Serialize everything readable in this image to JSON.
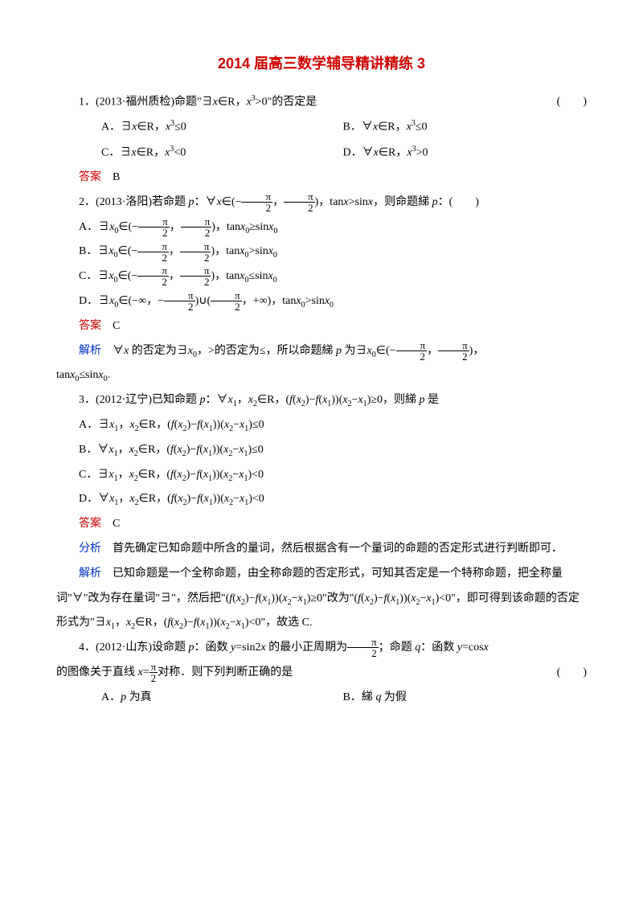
{
  "title": "2014 届高三数学辅导精讲精练 3",
  "q1": {
    "stem_a": "1．(2013·福州质检)命题\"∃",
    "stem_b": "∈R，",
    "stem_c": ">0\"的否定是",
    "paren": "(　　)",
    "A_a": "A．∃",
    "A_b": "∈R，",
    "A_c": "≤0",
    "B_a": "B．∀",
    "B_b": "∈R，",
    "B_c": "≤0",
    "C_a": "C．∃",
    "C_b": "∈R，",
    "C_c": "<0",
    "D_a": "D．∀",
    "D_b": "∈R，",
    "D_c": ">0",
    "ans_label": "答案",
    "ans": "　B"
  },
  "q2": {
    "stem_a": "2．(2013·洛阳)若命题 ",
    "stem_b": "：∀",
    "stem_c": "∈(−",
    "stem_d": "，",
    "stem_e": ")，tan",
    "stem_f": ">sin",
    "stem_g": "，则命题綈 ",
    "stem_h": "：(　　)",
    "A_a": "A．∃",
    "A_b": "∈(−",
    "A_c": "，",
    "A_d": ")，tan",
    "A_e": "≥sin",
    "B_a": "B．∃",
    "B_b": "∈(−",
    "B_c": "，",
    "B_d": ")，tan",
    "B_e": ">sin",
    "C_a": "C．∃",
    "C_b": "∈(−",
    "C_c": "，",
    "C_d": ")，tan",
    "C_e": "≤sin",
    "D_a": "D．∃",
    "D_b": "∈(−∞，−",
    "D_c": ")∪(",
    "D_d": "，+∞)，tan",
    "D_e": ">sin",
    "ans_label": "答案",
    "ans": "　C",
    "ex_label": "解析",
    "ex_a": "　∀",
    "ex_b": " 的否定为∃",
    "ex_c": "，>的否定为≤，所以命题綈 ",
    "ex_d": " 为∃",
    "ex_e": "∈(−",
    "ex_f": "，",
    "ex_g": ")，",
    "ex_h": "tan",
    "ex_i": "≤sin",
    "ex_j": "."
  },
  "q3": {
    "stem_a": "3．(2012·辽宁)已知命题 ",
    "stem_b": "：∀",
    "stem_c": "，",
    "stem_d": "∈R，(",
    "stem_e": ")−",
    "stem_f": "))(",
    "stem_g": "−",
    "stem_h": ")≥0，则綈 ",
    "stem_i": " 是",
    "A_a": "A．∃",
    "A_end": ")≤0",
    "B_a": "B．∀",
    "B_end": ")≤0",
    "C_a": "C．∃",
    "C_end": ")<0",
    "D_a": "D．∀",
    "D_end": ")<0",
    "mid_b": "，",
    "mid_c": "∈R，(",
    "mid_d": ")−",
    "mid_e": "))(",
    "mid_f": "−",
    "ans_label": "答案",
    "ans": "　C",
    "fx_label": "分析",
    "fx": "　首先确定已知命题中所含的量词，然后根据含有一个量词的命题的否定形式进行判断即可．",
    "ex_label": "解析",
    "ex1": "　已知命题是一个全称命题，由全称命题的否定形式，可知其否定是一个特称命题，把全称量词\"∀\"改为存在量词\"∃\"，然后把\"(",
    "ex2": ")−",
    "ex3": "))(",
    "ex4": "−",
    "ex5": ")≥0\"改为\"(",
    "ex6": ")−",
    "ex7": "))(",
    "ex8": "−",
    "ex9": ")<0\"，即可得到该命题的否定形式为\"∃",
    "ex10": "，",
    "ex11": "∈R，(",
    "ex12": ")−",
    "ex13": "))(",
    "ex14": "−",
    "ex15": ")<0\"，故选 C."
  },
  "q4": {
    "stem_a": "4．(2012·山东)设命题 ",
    "stem_b": "：函数 ",
    "stem_c": "=sin2",
    "stem_d": " 的最小正周期为",
    "stem_e": "；命题 ",
    "stem_f": "：函数 ",
    "stem_g": "=cos",
    "stem_h": "的图像关于直线 ",
    "stem_i": "=",
    "stem_j": "对称．则下列判断正确的是",
    "paren": "(　　)",
    "A": "A．",
    "A2": " 为真",
    "B": "B．綈 ",
    "B2": " 为假"
  },
  "vars": {
    "x": "x",
    "x0": "x",
    "x1": "x",
    "x2": "x",
    "p": "p",
    "q": "q",
    "y": "y",
    "f": "f",
    "sub0": "0",
    "sub1": "1",
    "sub2": "2",
    "sup3": "3",
    "pi": "π",
    "two": "2"
  }
}
